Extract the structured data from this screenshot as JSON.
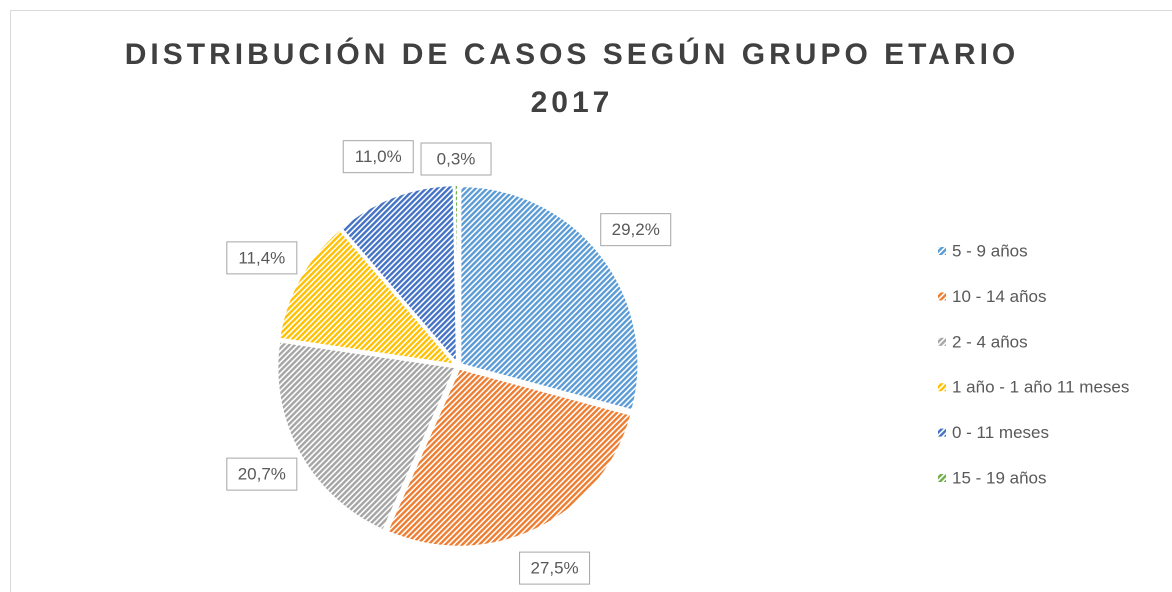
{
  "chart_data": {
    "type": "pie",
    "title": "DISTRIBUCIÓN DE CASOS SEGÚN GRUPO ETARIO",
    "subtitle": "2017",
    "categories": [
      "5 - 9 años",
      "10 - 14 años",
      "2 - 4 años",
      "1 año - 1 año 11 meses",
      "0 - 11 meses",
      "15 - 19 años"
    ],
    "values": [
      29.2,
      27.5,
      20.7,
      11.4,
      11.0,
      0.3
    ],
    "value_labels": [
      "29,2%",
      "27,5%",
      "20,7%",
      "11,4%",
      "11,0%",
      "0,3%"
    ],
    "colors": [
      "#5b9bd5",
      "#ed7d31",
      "#a5a5a5",
      "#ffc000",
      "#4472c4",
      "#70ad47"
    ],
    "legend": "right"
  }
}
